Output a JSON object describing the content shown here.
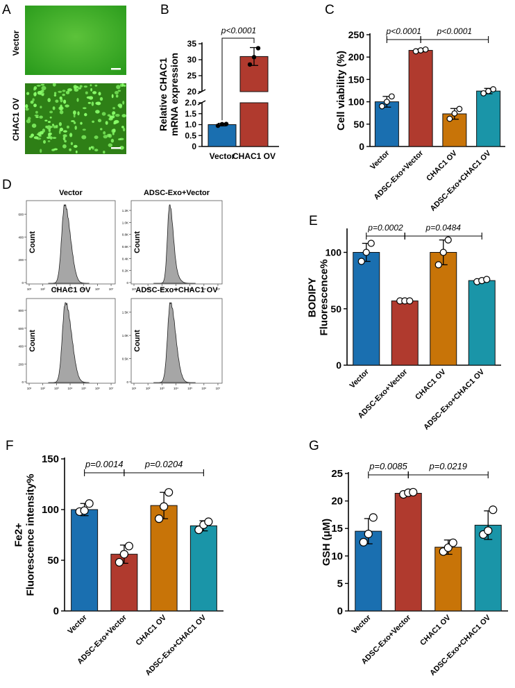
{
  "colors": {
    "blue": "#1a6fb0",
    "red": "#b03a2e",
    "orange": "#c87408",
    "teal": "#1a95a8",
    "green_bg": "#2d9e1e",
    "cell": "#8aff6a",
    "hist": "#a6a6a6"
  },
  "panel_letters": [
    "A",
    "B",
    "C",
    "D",
    "E",
    "F",
    "G"
  ],
  "panelA": {
    "row_labels": [
      "Vector",
      "CHAC1 OV"
    ]
  },
  "chart_data": [
    {
      "id": "B",
      "type": "bar",
      "categories": [
        "Vector",
        "CHAC1 OV"
      ],
      "values": [
        1.0,
        31.0
      ],
      "errors": [
        0.06,
        2.8
      ],
      "points": [
        [
          0.95,
          1.02,
          1.03
        ],
        [
          28.5,
          30.8,
          33.6
        ]
      ],
      "colors": [
        "blue",
        "red"
      ],
      "ylabel": "Relative CHAC1\nmRNA expression",
      "ylim": [
        0,
        35
      ],
      "axis_break": [
        2.0,
        20
      ],
      "yticks_lower": [
        "0",
        "0.5",
        "1.0",
        "1.5",
        "2.0"
      ],
      "yticks_upper": [
        "20",
        "25",
        "30",
        "35"
      ],
      "comparisons": [
        {
          "from": 0,
          "to": 1,
          "label": "p<0.0001"
        }
      ]
    },
    {
      "id": "C",
      "type": "bar",
      "categories": [
        "Vector",
        "ADSC-Exo+Vector",
        "CHAC1 OV",
        "ADSC-Exo+CHAC1 OV"
      ],
      "values": [
        100,
        215,
        73,
        124
      ],
      "errors": [
        12,
        3,
        12,
        6
      ],
      "points": [
        [
          90,
          100,
          112
        ],
        [
          213,
          215,
          217
        ],
        [
          62,
          74,
          84
        ],
        [
          119,
          124,
          128
        ]
      ],
      "colors": [
        "blue",
        "red",
        "orange",
        "teal"
      ],
      "ylabel": "Cell viability (%)",
      "ylim": [
        0,
        250
      ],
      "yticks": [
        "0",
        "50",
        "100",
        "150",
        "200",
        "250"
      ],
      "comparisons": [
        {
          "from": 0,
          "to": 1,
          "label": "p<0.0001"
        },
        {
          "from": 1,
          "to": 3,
          "label": "p<0.0001"
        }
      ]
    },
    {
      "id": "D",
      "type": "histogram",
      "ylabel": "Count",
      "xticks": [
        "10¹",
        "10²",
        "10³",
        "10⁴",
        "10⁵",
        "10⁶",
        "10⁷"
      ],
      "panels": [
        {
          "title": "Vector",
          "yticks": [
            "0",
            "200",
            "400",
            "600"
          ],
          "peak_log": 3.6,
          "width": 0.22,
          "skew": 0.25
        },
        {
          "title": "ADSC-Exo+Vector",
          "yticks": [
            "0",
            "0.2K",
            "0.4K",
            "0.6K",
            "0.8K",
            "1.0K",
            "1.2K"
          ],
          "peak_log": 3.55,
          "width": 0.16,
          "skew": 0.2
        },
        {
          "title": "CHAC1 OV",
          "yticks": [
            "0",
            "200",
            "400",
            "600",
            "800"
          ],
          "peak_log": 3.65,
          "width": 0.22,
          "skew": 0.3
        },
        {
          "title": "ADSC-Exo+CHAC1 OV",
          "yticks": [
            "0",
            "0.5K",
            "1.0K",
            "1.5K"
          ],
          "peak_log": 3.6,
          "width": 0.2,
          "skew": 0.25
        }
      ]
    },
    {
      "id": "E",
      "type": "bar",
      "categories": [
        "Vector",
        "ADSC-Exo+Vector",
        "CHAC1 OV",
        "ADSC-Exo+CHAC1 OV"
      ],
      "values": [
        100,
        57,
        100,
        75
      ],
      "errors": [
        8,
        0.8,
        11,
        1.5
      ],
      "points": [
        [
          92,
          100,
          108
        ],
        [
          57,
          57,
          57
        ],
        [
          89,
          100,
          111
        ],
        [
          74,
          75,
          76
        ]
      ],
      "colors": [
        "blue",
        "red",
        "orange",
        "teal"
      ],
      "ylabel": "BODIPY\nFluorescence%",
      "ylim": [
        0,
        120
      ],
      "yticks": [
        "0",
        "50",
        "100"
      ],
      "comparisons": [
        {
          "from": 0,
          "to": 1,
          "label": "p=0.0002"
        },
        {
          "from": 1,
          "to": 3,
          "label": "p=0.0484"
        }
      ]
    },
    {
      "id": "F",
      "type": "bar",
      "categories": [
        "Vector",
        "ADSC-Exo+Vector",
        "CHAC1 OV",
        "ADSC-Exo+CHAC1 OV"
      ],
      "values": [
        100,
        56,
        104,
        84
      ],
      "errors": [
        6,
        9,
        13,
        5
      ],
      "points": [
        [
          98,
          99,
          106
        ],
        [
          48,
          56,
          64
        ],
        [
          91,
          103,
          117
        ],
        [
          80,
          85,
          88
        ]
      ],
      "colors": [
        "blue",
        "red",
        "orange",
        "teal"
      ],
      "ylabel": "Fe2+\nFluorescence intensity%",
      "ylim": [
        0,
        150
      ],
      "yticks": [
        "0",
        "50",
        "100",
        "150"
      ],
      "comparisons": [
        {
          "from": 0,
          "to": 1,
          "label": "p=0.0014"
        },
        {
          "from": 1,
          "to": 3,
          "label": "p=0.0204"
        }
      ]
    },
    {
      "id": "G",
      "type": "bar",
      "categories": [
        "Vector",
        "ADSC-Exo+Vector",
        "CHAC1 OV",
        "ADSC-Exo+CHAC1 OV"
      ],
      "values": [
        14.5,
        21.4,
        11.6,
        15.6
      ],
      "errors": [
        2.3,
        0.3,
        1.3,
        2.6
      ],
      "points": [
        [
          12.5,
          14.0,
          17.0
        ],
        [
          21.2,
          21.5,
          21.6
        ],
        [
          10.8,
          11.5,
          12.4
        ],
        [
          13.9,
          14.6,
          18.4
        ]
      ],
      "colors": [
        "blue",
        "red",
        "orange",
        "teal"
      ],
      "ylabel": "GSH (μM)",
      "ylim": [
        0,
        25
      ],
      "yticks": [
        "0",
        "5",
        "10",
        "15",
        "20",
        "25"
      ],
      "comparisons": [
        {
          "from": 0,
          "to": 1,
          "label": "p=0.0085"
        },
        {
          "from": 1,
          "to": 3,
          "label": "p=0.0219"
        }
      ]
    }
  ]
}
